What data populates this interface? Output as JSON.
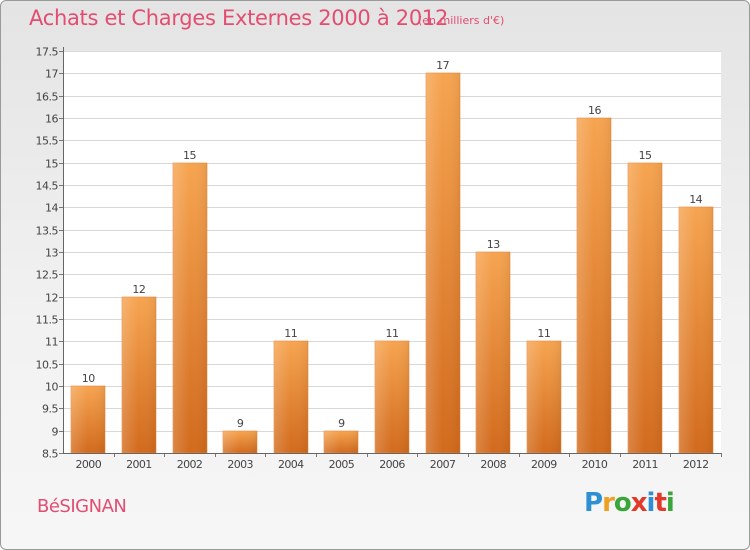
{
  "title": "Achats et Charges Externes 2000 à 2012",
  "subtitle": "(en milliers d'€)",
  "commune": "BéSIGNAN",
  "brand": {
    "letters": [
      "P",
      "r",
      "o",
      "x",
      "i",
      "t",
      "i"
    ],
    "colors": [
      "#2f8fd4",
      "#f0a020",
      "#3aa63a",
      "#e23a2a",
      "#2f8fd4",
      "#e23a2a",
      "#3aa63a"
    ]
  },
  "colors": {
    "title": "#e34d71",
    "bar_top": "#f6a450",
    "bar_bottom": "#d26a1c",
    "grid": "#d8d8d8"
  },
  "chart_data": {
    "type": "bar",
    "categories": [
      "2000",
      "2001",
      "2002",
      "2003",
      "2004",
      "2005",
      "2006",
      "2007",
      "2008",
      "2009",
      "2010",
      "2011",
      "2012"
    ],
    "values": [
      10,
      12,
      15,
      9,
      11,
      9,
      11,
      17,
      13,
      11,
      16,
      15,
      14
    ],
    "data_labels": [
      "10",
      "12",
      "15",
      "9",
      "11",
      "9",
      "11",
      "17",
      "13",
      "11",
      "16",
      "15",
      "14"
    ],
    "title": "Achats et Charges Externes 2000 à 2012",
    "xlabel": "",
    "ylabel": "",
    "ylim": [
      8.5,
      17.5
    ],
    "yticks": [
      8.5,
      9,
      9.5,
      10,
      10.5,
      11,
      11.5,
      12,
      12.5,
      13,
      13.5,
      14,
      14.5,
      15,
      15.5,
      16,
      16.5,
      17,
      17.5
    ],
    "ytick_labels": [
      "8.5",
      "9",
      "9.5",
      "10",
      "10.5",
      "11",
      "11.5",
      "12",
      "12.5",
      "13",
      "13.5",
      "14",
      "14.5",
      "15",
      "15.5",
      "16",
      "16.5",
      "17",
      "17.5"
    ],
    "grid": true
  }
}
